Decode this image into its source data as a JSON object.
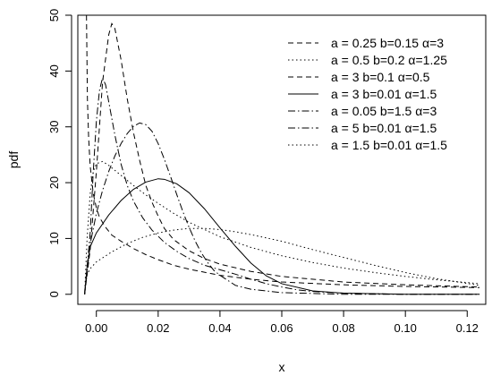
{
  "chart_data": {
    "type": "line",
    "xlabel": "x",
    "ylabel": "pdf",
    "xlim": [
      -0.006,
      0.126
    ],
    "ylim": [
      -1.8,
      50
    ],
    "xticks": [
      0.0,
      0.02,
      0.04,
      0.06,
      0.08,
      0.1,
      0.12
    ],
    "xtick_labels": [
      "0.00",
      "0.02",
      "0.04",
      "0.06",
      "0.08",
      "0.10",
      "0.12"
    ],
    "yticks": [
      0,
      10,
      20,
      30,
      40,
      50
    ],
    "ytick_labels": [
      "0",
      "10",
      "20",
      "30",
      "40",
      "50"
    ],
    "grid": false,
    "legend_position": "top-right",
    "series": [
      {
        "name": "a = 0.25 b=0.15 α=3",
        "dash": "dashed",
        "x": [
          -0.0032,
          -0.0029,
          -0.0025,
          -0.002,
          -0.001,
          0.0,
          0.001,
          0.003,
          0.005,
          0.008,
          0.012,
          0.016,
          0.02,
          0.025,
          0.03,
          0.04,
          0.05,
          0.06,
          0.08,
          0.1,
          0.124
        ],
        "y": [
          50,
          35,
          28,
          23,
          18,
          15.5,
          13.8,
          12,
          10.6,
          9.5,
          8.2,
          7.1,
          6.2,
          5.2,
          4.5,
          3.4,
          2.7,
          2.2,
          1.7,
          1.4,
          1.2
        ]
      },
      {
        "name": "a = 0.5 b=0.2 α=1.25",
        "dash": "dotted",
        "x": [
          -0.0038,
          -0.003,
          -0.002,
          0.0,
          0.005,
          0.01,
          0.015,
          0.02,
          0.025,
          0.03,
          0.035,
          0.04,
          0.045,
          0.05,
          0.06,
          0.07,
          0.08,
          0.09,
          0.1,
          0.11,
          0.124
        ],
        "y": [
          0.5,
          3.5,
          4.6,
          5.8,
          7.6,
          9.1,
          10.2,
          11.0,
          11.5,
          11.8,
          11.8,
          11.6,
          11.2,
          10.7,
          9.5,
          8.0,
          6.6,
          5.2,
          3.9,
          2.8,
          1.6
        ]
      },
      {
        "name": "a = 3 b=0.1 α=0.5",
        "dash": "dashed",
        "x": [
          -0.0038,
          -0.002,
          0.0,
          0.002,
          0.004,
          0.005,
          0.006,
          0.008,
          0.01,
          0.012,
          0.014,
          0.016,
          0.018,
          0.02,
          0.022,
          0.025,
          0.03,
          0.035,
          0.04,
          0.05,
          0.06,
          0.08,
          0.1,
          0.124
        ],
        "y": [
          0,
          8,
          22,
          38,
          46.5,
          48.5,
          47.6,
          42,
          35,
          29,
          24,
          19.5,
          16.5,
          14,
          11.8,
          9.8,
          7.8,
          6.4,
          5.4,
          4.1,
          3.2,
          2.2,
          1.7,
          1.3
        ]
      },
      {
        "name": "a = 3 b=0.01 α=1.5",
        "dash": "solid",
        "x": [
          -0.0038,
          -0.003,
          -0.002,
          0.0,
          0.004,
          0.008,
          0.012,
          0.016,
          0.02,
          0.022,
          0.026,
          0.03,
          0.035,
          0.04,
          0.045,
          0.05,
          0.055,
          0.06,
          0.07,
          0.08,
          0.1,
          0.124
        ],
        "y": [
          0,
          5,
          8.5,
          11,
          14.2,
          16.8,
          18.8,
          20.1,
          20.7,
          20.6,
          19.8,
          18.2,
          15.3,
          11.9,
          8.6,
          5.6,
          3.3,
          1.9,
          0.6,
          0.2,
          0,
          0
        ]
      },
      {
        "name": "a = 0.05 b=1.5 α=3",
        "dash": "dashdot",
        "x": [
          -0.0038,
          -0.002,
          0.0,
          0.002,
          0.004,
          0.006,
          0.008,
          0.01,
          0.012,
          0.014,
          0.016,
          0.018,
          0.02,
          0.022,
          0.024,
          0.026,
          0.028,
          0.03,
          0.032,
          0.034,
          0.036,
          0.038,
          0.04,
          0.045,
          0.05,
          0.06,
          0.08,
          0.1,
          0.124
        ],
        "y": [
          0,
          9,
          14.5,
          18.6,
          22,
          24.8,
          27,
          28.8,
          30.1,
          30.7,
          30.4,
          29.2,
          27,
          24.2,
          21.1,
          17.9,
          14.8,
          12,
          9.5,
          7.4,
          5.7,
          4.3,
          3.4,
          1.6,
          0.9,
          0.3,
          0,
          0,
          0
        ]
      },
      {
        "name": "a = 5 b=0.01 α=1.5",
        "dash": "dashdot",
        "x": [
          -0.0038,
          -0.002,
          -0.001,
          0.0,
          0.001,
          0.002,
          0.003,
          0.004,
          0.006,
          0.008,
          0.01,
          0.012,
          0.015,
          0.018,
          0.022,
          0.026,
          0.03,
          0.035,
          0.04,
          0.045,
          0.05,
          0.055,
          0.06,
          0.065,
          0.07,
          0.08,
          0.1,
          0.124
        ],
        "y": [
          0,
          11,
          22,
          31,
          36.5,
          38.8,
          37.5,
          34.5,
          28.5,
          23.3,
          19.5,
          16.7,
          13.7,
          11.5,
          9.3,
          7.7,
          6.4,
          5.2,
          4.4,
          3.6,
          2.7,
          1.9,
          1.3,
          0.8,
          0.5,
          0.2,
          0,
          0
        ]
      },
      {
        "name": "a = 1.5 b=0.01 α=1.5",
        "dash": "dotted",
        "x": [
          -0.0038,
          -0.003,
          -0.002,
          -0.001,
          0.0,
          0.002,
          0.004,
          0.008,
          0.012,
          0.016,
          0.02,
          0.025,
          0.03,
          0.04,
          0.05,
          0.06,
          0.07,
          0.08,
          0.09,
          0.1,
          0.11,
          0.124
        ],
        "y": [
          0,
          10,
          18,
          22,
          23.4,
          23.8,
          23.1,
          21.3,
          19.5,
          17.8,
          16.3,
          14.5,
          12.9,
          10.3,
          8.4,
          6.9,
          5.7,
          4.7,
          3.9,
          3.2,
          2.6,
          1.9
        ]
      }
    ]
  }
}
